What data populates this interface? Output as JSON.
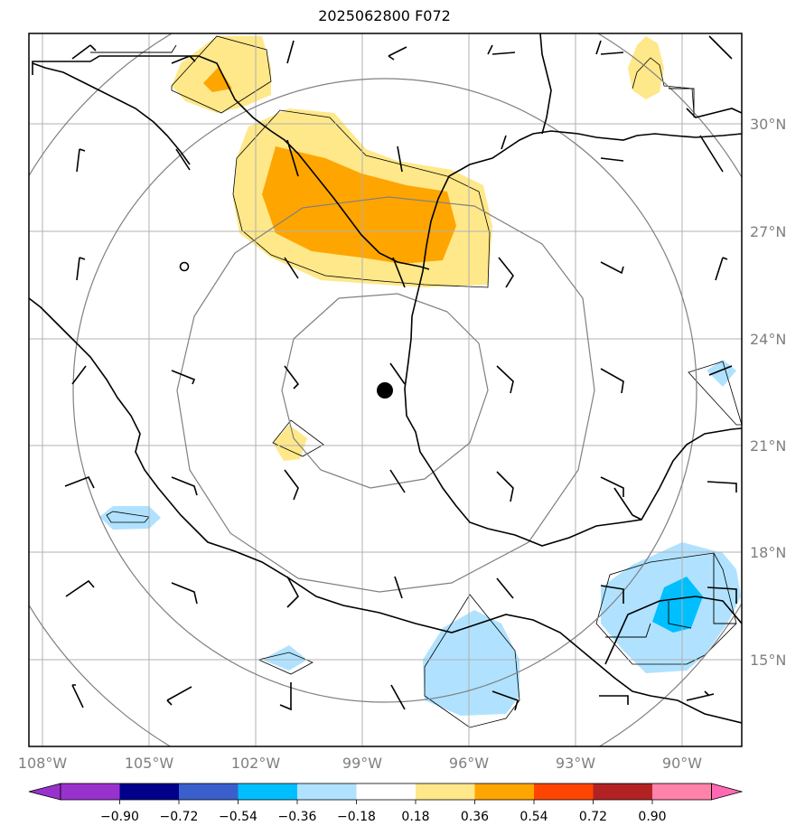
{
  "title": "2025062800 F072",
  "map": {
    "lat_labels": [
      "30°N",
      "27°N",
      "24°N",
      "21°N",
      "18°N",
      "15°N"
    ],
    "lon_labels": [
      "108°W",
      "105°W",
      "102°W",
      "99°W",
      "96°W",
      "93°W",
      "90°W"
    ],
    "center_marker": {
      "lat": 22.5,
      "lon": -98.4
    }
  },
  "colorbar": {
    "ticks": [
      "−0.90",
      "−0.72",
      "−0.54",
      "−0.36",
      "−0.18",
      "0.18",
      "0.36",
      "0.54",
      "0.72",
      "0.90"
    ],
    "colors": [
      "#9932cc",
      "#00008b",
      "#3a5fcd",
      "#00bfff",
      "#b0e2ff",
      "#ffffff",
      "#ffe88a",
      "#ffa500",
      "#ff4500",
      "#b22222",
      "#ff82ab",
      "#ff69b4"
    ]
  }
}
